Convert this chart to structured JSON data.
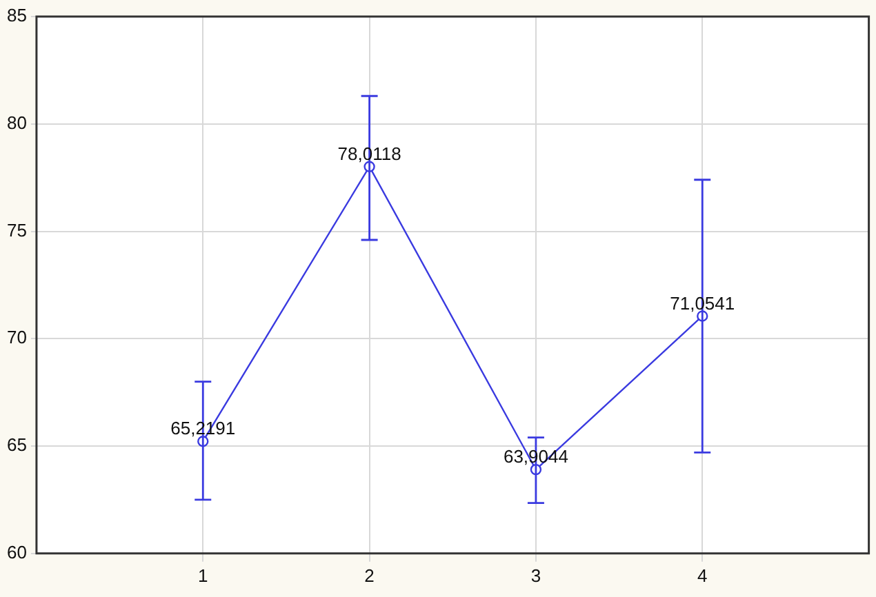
{
  "chart_data": {
    "type": "line",
    "x": [
      1,
      2,
      3,
      4
    ],
    "series": [
      {
        "color": "#3a3ae0",
        "values": [
          65.2191,
          78.0118,
          63.9044,
          71.0541
        ],
        "errors": [
          [
            62.5,
            68.0
          ],
          [
            74.6,
            81.3
          ],
          [
            62.35,
            65.4
          ],
          [
            64.7,
            77.4
          ]
        ],
        "value_labels": [
          "65,2191",
          "78,0118",
          "63,9044",
          "71,0541"
        ]
      }
    ],
    "xlim": [
      0,
      5
    ],
    "xticks": [
      1,
      2,
      3,
      4
    ],
    "ylim": [
      60,
      85
    ],
    "yticks": [
      60,
      65,
      70,
      75,
      80,
      85
    ],
    "grid": true,
    "marker": "circle",
    "line_style": "solid",
    "legend": false
  }
}
